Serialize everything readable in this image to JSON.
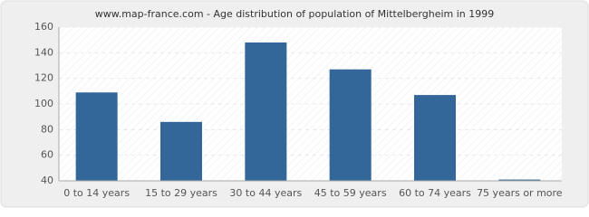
{
  "chart_data": {
    "type": "bar",
    "title": "www.map-france.com - Age distribution of population of Mittelbergheim in 1999",
    "categories": [
      "0 to 14 years",
      "15 to 29 years",
      "30 to 44 years",
      "45 to 59 years",
      "60 to 74 years",
      "75 years or more"
    ],
    "values": [
      109,
      86,
      148,
      127,
      107,
      41
    ],
    "color": "#336699",
    "ylim": [
      40,
      160
    ],
    "yticks": [
      40,
      60,
      80,
      100,
      120,
      140,
      160
    ],
    "grid": true
  }
}
